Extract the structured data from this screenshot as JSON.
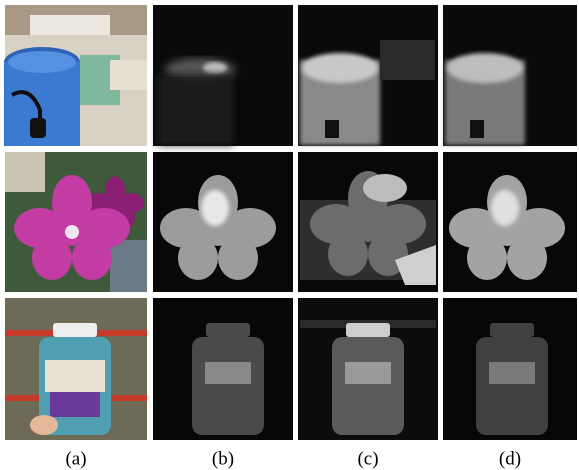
{
  "figure": {
    "panel_labels": [
      "(a)",
      "(b)",
      "(c)",
      "(d)"
    ]
  }
}
